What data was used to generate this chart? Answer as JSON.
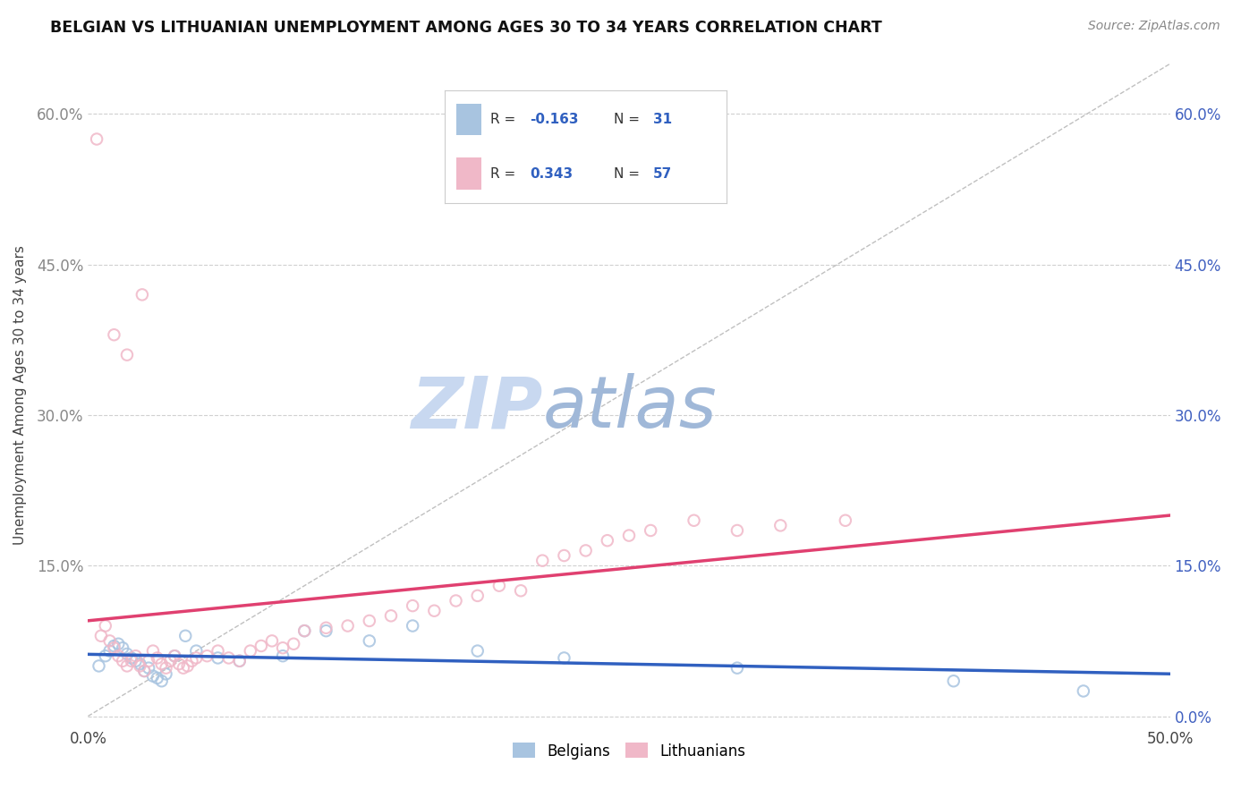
{
  "title": "BELGIAN VS LITHUANIAN UNEMPLOYMENT AMONG AGES 30 TO 34 YEARS CORRELATION CHART",
  "source": "Source: ZipAtlas.com",
  "ylabel": "Unemployment Among Ages 30 to 34 years",
  "xlim": [
    0.0,
    0.5
  ],
  "ylim": [
    -0.01,
    0.65
  ],
  "xticks": [
    0.0,
    0.05,
    0.1,
    0.15,
    0.2,
    0.25,
    0.3,
    0.35,
    0.4,
    0.45,
    0.5
  ],
  "yticks": [
    0.0,
    0.15,
    0.3,
    0.45,
    0.6
  ],
  "ytick_labels_left": [
    "",
    "15.0%",
    "30.0%",
    "45.0%",
    "60.0%"
  ],
  "ytick_labels_right": [
    "0.0%",
    "15.0%",
    "30.0%",
    "45.0%",
    "60.0%"
  ],
  "xtick_labels": [
    "0.0%",
    "",
    "",
    "",
    "",
    "",
    "",
    "",
    "",
    "",
    "50.0%"
  ],
  "belgian_R": -0.163,
  "belgian_N": 31,
  "lithuanian_R": 0.343,
  "lithuanian_N": 57,
  "blue_color": "#a8c4e0",
  "pink_color": "#f0b8c8",
  "blue_line_color": "#3060c0",
  "pink_line_color": "#e04070",
  "diagonal_color": "#c0c0c0",
  "background_color": "#ffffff",
  "grid_color": "#d0d0d0",
  "watermark": "ZIPatlas",
  "watermark_color_zip": "#c8d8f0",
  "watermark_color_atlas": "#a0b8d8",
  "title_color": "#111111",
  "right_axis_color": "#4060c0",
  "left_axis_color": "#888888",
  "legend_text_color": "#333333",
  "legend_value_color": "#3060c0",
  "belgians_x": [
    0.005,
    0.008,
    0.01,
    0.012,
    0.014,
    0.016,
    0.018,
    0.02,
    0.022,
    0.024,
    0.026,
    0.028,
    0.03,
    0.032,
    0.034,
    0.036,
    0.04,
    0.045,
    0.05,
    0.06,
    0.07,
    0.09,
    0.1,
    0.11,
    0.13,
    0.15,
    0.18,
    0.22,
    0.3,
    0.4,
    0.46
  ],
  "belgians_y": [
    0.05,
    0.06,
    0.065,
    0.07,
    0.072,
    0.068,
    0.062,
    0.058,
    0.055,
    0.052,
    0.045,
    0.048,
    0.04,
    0.038,
    0.035,
    0.042,
    0.06,
    0.08,
    0.065,
    0.058,
    0.055,
    0.06,
    0.085,
    0.085,
    0.075,
    0.09,
    0.065,
    0.058,
    0.048,
    0.035,
    0.025
  ],
  "lithuanians_x": [
    0.004,
    0.006,
    0.008,
    0.01,
    0.012,
    0.014,
    0.016,
    0.018,
    0.02,
    0.022,
    0.024,
    0.026,
    0.028,
    0.03,
    0.032,
    0.034,
    0.036,
    0.038,
    0.04,
    0.042,
    0.044,
    0.046,
    0.048,
    0.05,
    0.055,
    0.06,
    0.065,
    0.07,
    0.075,
    0.08,
    0.085,
    0.09,
    0.095,
    0.1,
    0.11,
    0.12,
    0.13,
    0.14,
    0.15,
    0.16,
    0.17,
    0.18,
    0.19,
    0.2,
    0.21,
    0.22,
    0.23,
    0.24,
    0.25,
    0.26,
    0.28,
    0.3,
    0.32,
    0.35,
    0.012,
    0.018,
    0.025
  ],
  "lithuanians_y": [
    0.575,
    0.08,
    0.09,
    0.075,
    0.068,
    0.06,
    0.055,
    0.05,
    0.055,
    0.06,
    0.05,
    0.045,
    0.055,
    0.065,
    0.058,
    0.052,
    0.048,
    0.055,
    0.06,
    0.052,
    0.048,
    0.05,
    0.055,
    0.058,
    0.06,
    0.065,
    0.058,
    0.055,
    0.065,
    0.07,
    0.075,
    0.068,
    0.072,
    0.085,
    0.088,
    0.09,
    0.095,
    0.1,
    0.11,
    0.105,
    0.115,
    0.12,
    0.13,
    0.125,
    0.155,
    0.16,
    0.165,
    0.175,
    0.18,
    0.185,
    0.195,
    0.185,
    0.19,
    0.195,
    0.38,
    0.36,
    0.42
  ]
}
